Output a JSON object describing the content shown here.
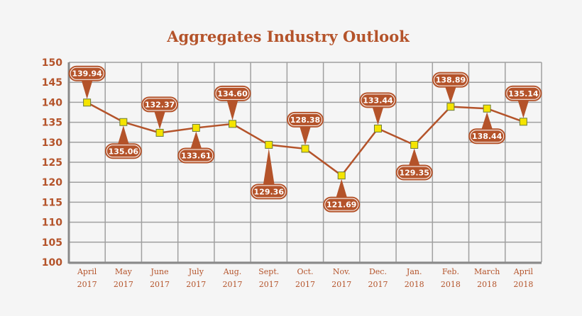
{
  "chart_data": {
    "type": "line",
    "title": "Aggregates Industry Outlook",
    "categories": [
      [
        "April",
        "2017"
      ],
      [
        "May",
        "2017"
      ],
      [
        "June",
        "2017"
      ],
      [
        "July",
        "2017"
      ],
      [
        "Aug.",
        "2017"
      ],
      [
        "Sept.",
        "2017"
      ],
      [
        "Oct.",
        "2017"
      ],
      [
        "Nov.",
        "2017"
      ],
      [
        "Dec.",
        "2017"
      ],
      [
        "Jan.",
        "2018"
      ],
      [
        "Feb.",
        "2018"
      ],
      [
        "March",
        "2018"
      ],
      [
        "April",
        "2018"
      ]
    ],
    "values": [
      139.94,
      135.06,
      132.37,
      133.61,
      134.6,
      129.36,
      128.38,
      121.69,
      133.44,
      129.35,
      138.89,
      138.44,
      135.14
    ],
    "data_labels": [
      "139.94",
      "135.06",
      "132.37",
      "133.61",
      "134.60",
      "129.36",
      "128.38",
      "121.69",
      "133.44",
      "129.35",
      "138.89",
      "138.44",
      "135.14"
    ],
    "label_side": [
      "above",
      "below",
      "above",
      "below",
      "above",
      "below",
      "above",
      "below",
      "above",
      "below",
      "above",
      "below",
      "above"
    ],
    "ylim": [
      100,
      150
    ],
    "yticks": [
      100,
      105,
      110,
      115,
      120,
      125,
      130,
      135,
      140,
      145,
      150
    ],
    "grid": true,
    "xlabel": "",
    "ylabel": "",
    "colors": {
      "line": "#b4532a",
      "marker": "#f5e400",
      "marker_edge": "#6b7b3a",
      "text": "#b4532a",
      "grid": "#a0a0a0",
      "background": "#f5f5f5"
    }
  }
}
